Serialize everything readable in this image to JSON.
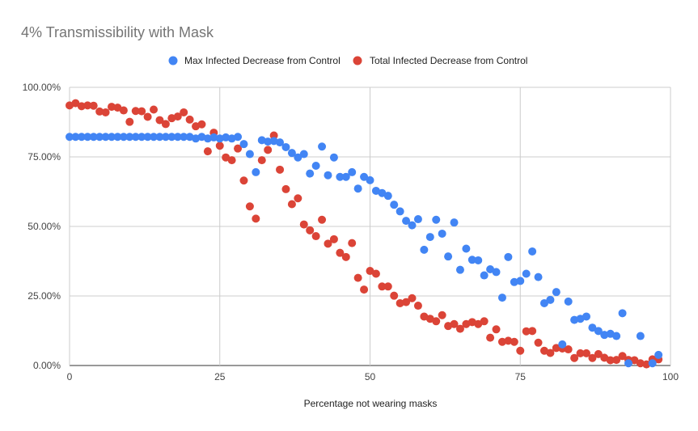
{
  "chart_data": {
    "type": "scatter",
    "title": "4% Transmissibility with Mask",
    "xlabel": "Percentage not wearing masks",
    "ylabel": "",
    "xlim": [
      0,
      100
    ],
    "ylim": [
      0,
      100
    ],
    "x_ticks": [
      "0",
      "25",
      "50",
      "75",
      "100"
    ],
    "y_ticks": [
      "0.00%",
      "25.00%",
      "50.00%",
      "75.00%",
      "100.00%"
    ],
    "legend_position": "top",
    "colors": {
      "max": "#4285F4",
      "total": "#DB4437"
    },
    "series": [
      {
        "name": "Max Infected Decrease from Control",
        "color": "#4285F4",
        "x": [
          0,
          1,
          2,
          3,
          4,
          5,
          6,
          7,
          8,
          9,
          10,
          11,
          12,
          13,
          14,
          15,
          16,
          17,
          18,
          19,
          20,
          21,
          22,
          23,
          24,
          25,
          26,
          27,
          28,
          29,
          30,
          31,
          32,
          33,
          34,
          35,
          36,
          37,
          38,
          39,
          40,
          41,
          42,
          43,
          44,
          45,
          46,
          47,
          48,
          49,
          50,
          51,
          52,
          53,
          54,
          55,
          56,
          57,
          58,
          59,
          60,
          61,
          62,
          63,
          64,
          65,
          66,
          67,
          68,
          69,
          70,
          71,
          72,
          73,
          74,
          75,
          76,
          77,
          78,
          79,
          80,
          81,
          82,
          83,
          84,
          85,
          86,
          87,
          88,
          89,
          90,
          91,
          92,
          93,
          95,
          97,
          98
        ],
        "values": [
          82.2,
          82.2,
          82.2,
          82.2,
          82.2,
          82.2,
          82.2,
          82.2,
          82.2,
          82.2,
          82.2,
          82.2,
          82.2,
          82.2,
          82.2,
          82.2,
          82.2,
          82.2,
          82.2,
          82.2,
          82.2,
          81.6,
          82.2,
          81.6,
          82.0,
          81.6,
          82.0,
          81.6,
          82.2,
          79.6,
          76.0,
          69.5,
          81.0,
          80.5,
          80.7,
          80.2,
          78.5,
          76.4,
          74.8,
          76.0,
          69.0,
          71.8,
          78.7,
          68.4,
          74.8,
          67.8,
          67.8,
          69.5,
          63.6,
          67.8,
          66.6,
          62.8,
          62.0,
          61.0,
          57.8,
          55.4,
          52.0,
          50.4,
          52.6,
          41.6,
          46.2,
          52.4,
          47.4,
          39.2,
          51.4,
          34.4,
          42.0,
          38.0,
          37.8,
          32.4,
          34.6,
          33.6,
          24.4,
          39.0,
          30.0,
          30.4,
          33.0,
          41.0,
          31.8,
          22.4,
          23.6,
          26.4,
          7.6,
          23.0,
          16.4,
          16.8,
          17.6,
          13.6,
          12.4,
          11.0,
          11.4,
          10.6,
          18.8,
          0.8,
          10.6,
          0.8,
          3.8
        ]
      },
      {
        "name": "Total Infected Decrease from Control",
        "color": "#DB4437",
        "x": [
          0,
          1,
          2,
          3,
          4,
          5,
          6,
          7,
          8,
          9,
          10,
          11,
          12,
          13,
          14,
          15,
          16,
          17,
          18,
          19,
          20,
          21,
          22,
          23,
          24,
          25,
          26,
          27,
          28,
          29,
          30,
          31,
          32,
          33,
          34,
          35,
          36,
          37,
          38,
          39,
          40,
          41,
          42,
          43,
          44,
          45,
          46,
          47,
          48,
          49,
          50,
          51,
          52,
          53,
          54,
          55,
          56,
          57,
          58,
          59,
          60,
          61,
          62,
          63,
          64,
          65,
          66,
          67,
          68,
          69,
          70,
          71,
          72,
          73,
          74,
          75,
          76,
          77,
          78,
          79,
          80,
          81,
          82,
          83,
          84,
          85,
          86,
          87,
          88,
          89,
          90,
          91,
          92,
          93,
          94,
          95,
          96,
          97,
          98
        ],
        "values": [
          93.5,
          94.3,
          93.2,
          93.5,
          93.4,
          91.3,
          91.0,
          93.0,
          92.7,
          91.7,
          87.6,
          91.5,
          91.4,
          89.4,
          92.0,
          88.2,
          86.8,
          88.9,
          89.5,
          91.0,
          88.4,
          86.0,
          86.7,
          77.0,
          83.7,
          79.0,
          74.8,
          73.8,
          78.0,
          66.5,
          57.2,
          52.8,
          73.8,
          77.5,
          82.7,
          70.4,
          63.4,
          58.0,
          60.1,
          50.7,
          48.6,
          46.5,
          52.4,
          43.8,
          45.4,
          40.5,
          39.0,
          44.0,
          31.5,
          27.3,
          34.0,
          33.0,
          28.4,
          28.4,
          25.1,
          22.4,
          22.8,
          24.2,
          21.5,
          17.6,
          16.8,
          15.9,
          18.1,
          14.2,
          14.9,
          13.2,
          14.9,
          15.6,
          14.9,
          15.9,
          10.0,
          13.0,
          8.5,
          8.9,
          8.5,
          5.3,
          12.3,
          12.4,
          8.2,
          5.3,
          4.5,
          6.3,
          6.1,
          5.8,
          2.7,
          4.4,
          4.4,
          2.7,
          4.1,
          2.8,
          1.9,
          2.0,
          3.4,
          2.0,
          1.9,
          0.8,
          0.4,
          2.2,
          2.2
        ]
      }
    ]
  }
}
